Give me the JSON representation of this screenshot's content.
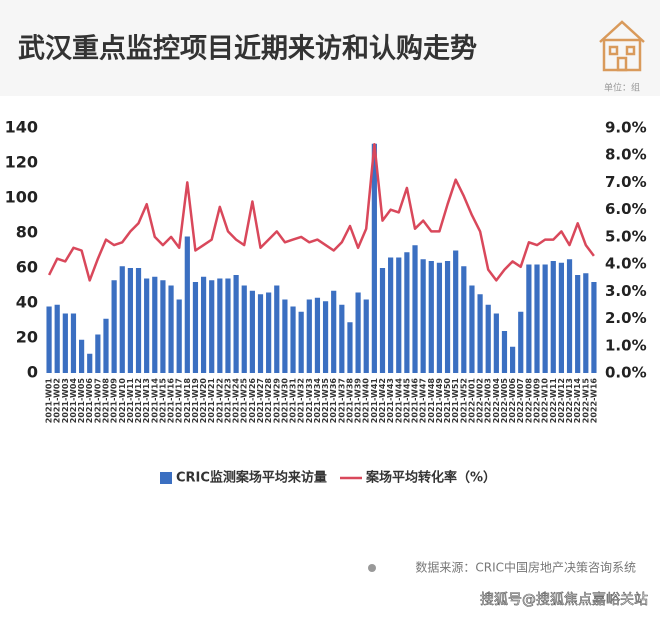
{
  "chart_data": {
    "type": "bar_line",
    "title": "武汉重点监控项目近期来访和认购走势",
    "unit": "单位：组",
    "source": "数据来源：CRIC中国房地产决策咨询系统",
    "watermark": "搜狐号@搜狐焦点嘉峪关站",
    "categories": [
      "2021-W01",
      "2021-W02",
      "2021-W03",
      "2021-W04",
      "2021-W05",
      "2021-W06",
      "2021-W07",
      "2021-W08",
      "2021-W09",
      "2021-W10",
      "2021-W11",
      "2021-W12",
      "2021-W13",
      "2021-W14",
      "2021-W15",
      "2021-W16",
      "2021-W17",
      "2021-W18",
      "2021-W19",
      "2021-W20",
      "2021-W21",
      "2021-W22",
      "2021-W23",
      "2021-W24",
      "2021-W25",
      "2021-W26",
      "2021-W27",
      "2021-W28",
      "2021-W29",
      "2021-W30",
      "2021-W31",
      "2021-W32",
      "2021-W33",
      "2021-W34",
      "2021-W35",
      "2021-W36",
      "2021-W37",
      "2021-W38",
      "2021-W39",
      "2021-W40",
      "2021-W41",
      "2021-W42",
      "2021-W43",
      "2021-W44",
      "2021-W45",
      "2021-W46",
      "2021-W47",
      "2021-W48",
      "2021-W49",
      "2021-W50",
      "2021-W51",
      "2021-W52",
      "2022-W01",
      "2022-W02",
      "2022-W03",
      "2022-W04",
      "2022-W05",
      "2022-W06",
      "2022-W07",
      "2022-W08",
      "2022-W09",
      "2022-W10",
      "2022-W11",
      "2022-W12",
      "2022-W13",
      "2022-W14",
      "2022-W15",
      "2022-W16"
    ],
    "series": [
      {
        "name": "CRIC监测案场平均来访量",
        "color": "#3b6fc1",
        "values": [
          38,
          39,
          34,
          34,
          19,
          11,
          22,
          31,
          53,
          61,
          60,
          60,
          54,
          55,
          53,
          50,
          42,
          78,
          52,
          55,
          53,
          54,
          54,
          56,
          50,
          47,
          45,
          46,
          50,
          42,
          38,
          35,
          42,
          43,
          41,
          47,
          39,
          29,
          46,
          42,
          131,
          60,
          66,
          66,
          69,
          73,
          65,
          64,
          63,
          64,
          70,
          61,
          50,
          45,
          39,
          34,
          24,
          15,
          35,
          62,
          62,
          62,
          64,
          63,
          65,
          56,
          57,
          52
        ]
      },
      {
        "name": "案场平均转化率（%）",
        "color": "#d9485b",
        "axis": "y2",
        "values": [
          3.6,
          4.2,
          4.1,
          4.6,
          4.5,
          3.4,
          4.2,
          4.9,
          4.7,
          4.8,
          5.2,
          5.5,
          6.2,
          5.0,
          4.7,
          5.0,
          4.6,
          7.0,
          4.5,
          4.7,
          4.9,
          6.1,
          5.2,
          4.9,
          4.7,
          6.3,
          4.6,
          4.9,
          5.2,
          4.8,
          4.9,
          5.0,
          4.8,
          4.9,
          4.7,
          4.5,
          4.8,
          5.4,
          4.6,
          5.3,
          8.4,
          5.6,
          6.0,
          5.9,
          6.8,
          5.3,
          5.6,
          5.2,
          5.2,
          6.2,
          7.1,
          6.5,
          5.8,
          5.2,
          3.8,
          3.4,
          3.8,
          4.1,
          3.9,
          4.8,
          4.7,
          4.9,
          4.9,
          5.2,
          4.7,
          5.5,
          4.7,
          4.3
        ]
      }
    ],
    "ylim": [
      0,
      140
    ],
    "yticks": [
      0,
      20,
      40,
      60,
      80,
      100,
      120,
      140
    ],
    "y2lim": [
      0,
      9
    ],
    "y2ticks": [
      {
        "value": 0,
        "label": "0.0%"
      },
      {
        "value": 1,
        "label": "1.0%"
      },
      {
        "value": 2,
        "label": "2.0%"
      },
      {
        "value": 3,
        "label": "3.0%"
      },
      {
        "value": 4,
        "label": "4.0%"
      },
      {
        "value": 5,
        "label": "5.0%"
      },
      {
        "value": 6,
        "label": "6.0%"
      },
      {
        "value": 7,
        "label": "7.0%"
      },
      {
        "value": 8,
        "label": "8.0%"
      },
      {
        "value": 9,
        "label": "9.0%"
      }
    ]
  }
}
